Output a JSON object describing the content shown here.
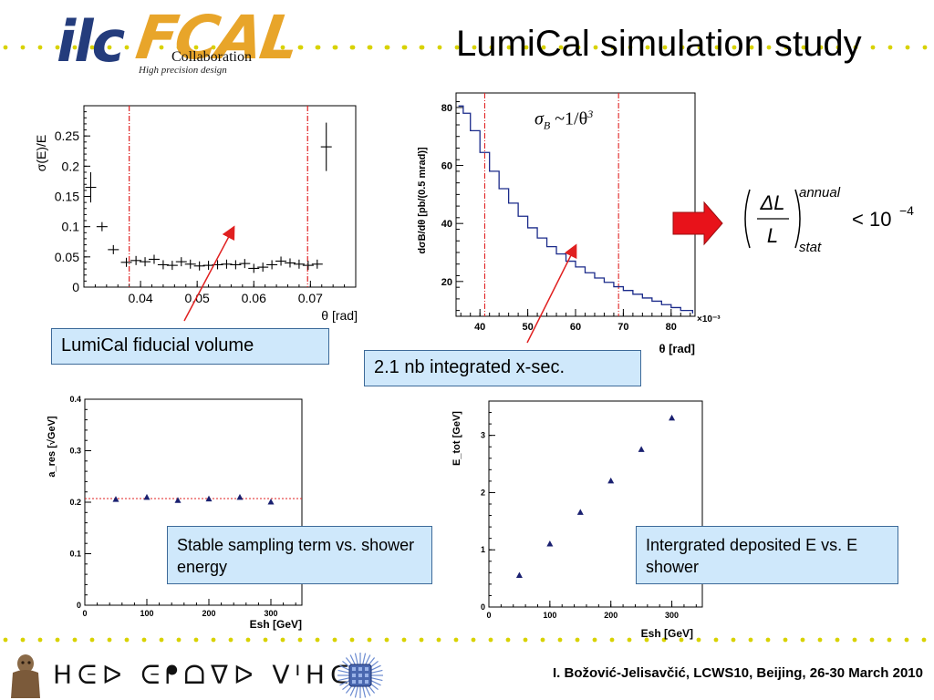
{
  "slide": {
    "title": "LumiCal simulation study",
    "footer": "I. Božović-Jelisavčić, LCWS10, Beijing, 26-30 March 2010",
    "footer_glyphs": "ᕼᕮᐅ ᕮᖰᗝᐁᐅ ᐯᑊᕼᑕ"
  },
  "logos": {
    "ilc": "ilc",
    "fcal": "FCAL",
    "collaboration": "Collaboration",
    "tagline": "High precision design"
  },
  "annotations": {
    "fiducial": "LumiCal fiducial volume",
    "xsec": "2.1 nb integrated x-sec.",
    "sampling": "Stable sampling term vs. shower energy",
    "deposited": "Intergrated deposited E vs. E shower"
  },
  "formula": {
    "sigma": "σ",
    "sigma_sub": "B",
    "sigma_rel": "~1/θ",
    "sigma_exp": "3",
    "num": "ΔL",
    "den": "L",
    "sup": "annual",
    "sub": "stat",
    "rhs": "< 10",
    "rhs_exp": "−4"
  },
  "colors": {
    "dot_yellow": "#d8d200",
    "note_fill": "#cfe8fb",
    "arrow_red": "#e8121a",
    "line_red": "#e02020",
    "hist_blue": "#1a2a8a",
    "marker_navy": "#1a2070"
  },
  "chart_data": [
    {
      "id": "chart1",
      "type": "scatter",
      "ylabel": "σ(E)/E",
      "xlabel": "θ  [rad]",
      "xlim": [
        0.03,
        0.078
      ],
      "ylim": [
        0,
        0.3
      ],
      "xticks": [
        "0.04",
        "0.05",
        "0.06",
        "0.07"
      ],
      "yticks": [
        "0",
        "0.05",
        "0.1",
        "0.15",
        "0.2",
        "0.25"
      ],
      "vlines": [
        0.038,
        0.0695
      ],
      "points": [
        {
          "x": 0.0312,
          "y": 0.165,
          "yerr": 0.025
        },
        {
          "x": 0.0332,
          "y": 0.1,
          "yerr": 0
        },
        {
          "x": 0.0352,
          "y": 0.062,
          "yerr": 0
        },
        {
          "x": 0.0375,
          "y": 0.041,
          "yerr": 0
        },
        {
          "x": 0.0392,
          "y": 0.044,
          "yerr": 0
        },
        {
          "x": 0.0408,
          "y": 0.042,
          "yerr": 0
        },
        {
          "x": 0.0424,
          "y": 0.046,
          "yerr": 0
        },
        {
          "x": 0.044,
          "y": 0.037,
          "yerr": 0
        },
        {
          "x": 0.0456,
          "y": 0.036,
          "yerr": 0
        },
        {
          "x": 0.0472,
          "y": 0.042,
          "yerr": 0
        },
        {
          "x": 0.0488,
          "y": 0.038,
          "yerr": 0
        },
        {
          "x": 0.0504,
          "y": 0.035,
          "yerr": 0
        },
        {
          "x": 0.052,
          "y": 0.036,
          "yerr": 0
        },
        {
          "x": 0.0536,
          "y": 0.037,
          "yerr": 0
        },
        {
          "x": 0.0552,
          "y": 0.038,
          "yerr": 0
        },
        {
          "x": 0.0568,
          "y": 0.037,
          "yerr": 0
        },
        {
          "x": 0.0584,
          "y": 0.039,
          "yerr": 0
        },
        {
          "x": 0.06,
          "y": 0.031,
          "yerr": 0
        },
        {
          "x": 0.0616,
          "y": 0.033,
          "yerr": 0
        },
        {
          "x": 0.0632,
          "y": 0.037,
          "yerr": 0
        },
        {
          "x": 0.0648,
          "y": 0.043,
          "yerr": 0
        },
        {
          "x": 0.0664,
          "y": 0.04,
          "yerr": 0
        },
        {
          "x": 0.068,
          "y": 0.038,
          "yerr": 0
        },
        {
          "x": 0.0696,
          "y": 0.036,
          "yerr": 0
        },
        {
          "x": 0.0712,
          "y": 0.038,
          "yerr": 0
        },
        {
          "x": 0.0728,
          "y": 0.232,
          "yerr": 0.04
        }
      ]
    },
    {
      "id": "chart2",
      "type": "line",
      "ylabel": "dσB/dθ [pb/(0.5 mrad)]",
      "xlabel": "θ [rad]",
      "x_exponent": "×10⁻³",
      "xlim": [
        35,
        85
      ],
      "ylim": [
        8,
        85
      ],
      "xticks": [
        "40",
        "50",
        "60",
        "70",
        "80"
      ],
      "yticks": [
        "20",
        "40",
        "60",
        "80"
      ],
      "vlines": [
        41,
        69
      ],
      "x": [
        35.5,
        36.5,
        38,
        40,
        42,
        44,
        46,
        48,
        50,
        52,
        54,
        56,
        58,
        60,
        62,
        64,
        66,
        68,
        70,
        72,
        74,
        76,
        78,
        80,
        82,
        84.5
      ],
      "y": [
        80.5,
        78,
        72,
        64.5,
        58,
        52,
        47,
        42.5,
        38.5,
        35,
        32,
        29.5,
        27,
        25,
        23,
        21.2,
        19.7,
        18.2,
        16.9,
        15.6,
        14.3,
        13.2,
        12,
        11,
        10,
        9
      ]
    },
    {
      "id": "chart3",
      "type": "scatter",
      "ylabel": "a_res [√GeV]",
      "xlabel": "Esh [GeV]",
      "xlim": [
        0,
        350
      ],
      "ylim": [
        0,
        0.4
      ],
      "xticks": [
        "0",
        "100",
        "200",
        "300"
      ],
      "yticks": [
        "0",
        "0.1",
        "0.2",
        "0.3",
        "0.4"
      ],
      "hline": 0.207,
      "x": [
        50,
        100,
        150,
        200,
        250,
        300
      ],
      "y": [
        0.205,
        0.209,
        0.203,
        0.206,
        0.209,
        0.2
      ]
    },
    {
      "id": "chart4",
      "type": "scatter",
      "ylabel": "E_tot [GeV]",
      "xlabel": "Esh [GeV]",
      "xlim": [
        0,
        350
      ],
      "ylim": [
        0,
        3.6
      ],
      "xticks": [
        "0",
        "100",
        "200",
        "300"
      ],
      "yticks": [
        "0",
        "1",
        "2",
        "3"
      ],
      "x": [
        50,
        100,
        150,
        200,
        250,
        300
      ],
      "y": [
        0.55,
        1.1,
        1.65,
        2.2,
        2.75,
        3.3
      ]
    }
  ]
}
